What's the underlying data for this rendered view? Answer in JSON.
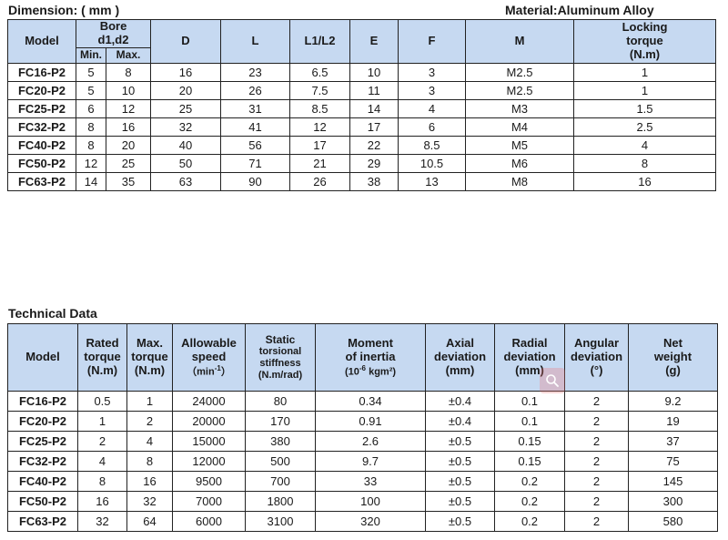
{
  "dimension": {
    "title": "Dimension: ( mm )",
    "material": "Material:Aluminum Alloy",
    "headers": {
      "model": "Model",
      "bore_line1": "Bore",
      "bore_line2": "d1,d2",
      "min": "Min.",
      "max": "Max.",
      "d": "D",
      "l": "L",
      "l1l2": "L1/L2",
      "e": "E",
      "f": "F",
      "m": "M",
      "torque_line1": "Locking",
      "torque_line2": "torque",
      "torque_line3": "(N.m)"
    },
    "rows": [
      [
        "FC16-P2",
        "5",
        "8",
        "16",
        "23",
        "6.5",
        "10",
        "3",
        "M2.5",
        "1"
      ],
      [
        "FC20-P2",
        "5",
        "10",
        "20",
        "26",
        "7.5",
        "11",
        "3",
        "M2.5",
        "1"
      ],
      [
        "FC25-P2",
        "6",
        "12",
        "25",
        "31",
        "8.5",
        "14",
        "4",
        "M3",
        "1.5"
      ],
      [
        "FC32-P2",
        "8",
        "16",
        "32",
        "41",
        "12",
        "17",
        "6",
        "M4",
        "2.5"
      ],
      [
        "FC40-P2",
        "8",
        "20",
        "40",
        "56",
        "17",
        "22",
        "8.5",
        "M5",
        "4"
      ],
      [
        "FC50-P2",
        "12",
        "25",
        "50",
        "71",
        "21",
        "29",
        "10.5",
        "M6",
        "8"
      ],
      [
        "FC63-P2",
        "14",
        "35",
        "63",
        "90",
        "26",
        "38",
        "13",
        "M8",
        "16"
      ]
    ]
  },
  "technical": {
    "title": "Technical Data",
    "headers": {
      "model": "Model",
      "rated_1": "Rated",
      "rated_2": "torque",
      "rated_3": "(N.m)",
      "max_1": "Max.",
      "max_2": "torque",
      "max_3": "(N.m)",
      "speed_1": "Allowable",
      "speed_2": "speed",
      "speed_3_pre": "（min",
      "speed_3_sup": "-1",
      "speed_3_post": "）",
      "static_1": "Static",
      "static_2": "torsional",
      "static_3": "stiffness",
      "static_4": "(N.m/rad)",
      "moment_1": "Moment",
      "moment_2": "of inertia",
      "moment_3_pre": "(10",
      "moment_3_sup": "-6",
      "moment_3_post": " kgm²)",
      "axial_1": "Axial",
      "axial_2": "deviation",
      "axial_3": "(mm)",
      "radial_1": "Radial",
      "radial_2": "deviation",
      "radial_3": "(mm)",
      "angular_1": "Angular",
      "angular_2": "deviation",
      "angular_3": "(°)",
      "weight_1": "Net",
      "weight_2": "weight",
      "weight_3": "(g)"
    },
    "rows": [
      [
        "FC16-P2",
        "0.5",
        "1",
        "24000",
        "80",
        "0.34",
        "±0.4",
        "0.1",
        "2",
        "9.2"
      ],
      [
        "FC20-P2",
        "1",
        "2",
        "20000",
        "170",
        "0.91",
        "±0.4",
        "0.1",
        "2",
        "19"
      ],
      [
        "FC25-P2",
        "2",
        "4",
        "15000",
        "380",
        "2.6",
        "±0.5",
        "0.15",
        "2",
        "37"
      ],
      [
        "FC32-P2",
        "4",
        "8",
        "12000",
        "500",
        "9.7",
        "±0.5",
        "0.15",
        "2",
        "75"
      ],
      [
        "FC40-P2",
        "8",
        "16",
        "9500",
        "700",
        "33",
        "±0.5",
        "0.2",
        "2",
        "145"
      ],
      [
        "FC50-P2",
        "16",
        "32",
        "7000",
        "1800",
        "100",
        "±0.5",
        "0.2",
        "2",
        "300"
      ],
      [
        "FC63-P2",
        "32",
        "64",
        "6000",
        "3100",
        "320",
        "±0.5",
        "0.2",
        "2",
        "580"
      ]
    ]
  },
  "overlay": {
    "icon": "search-icon",
    "color": "#e06060"
  }
}
